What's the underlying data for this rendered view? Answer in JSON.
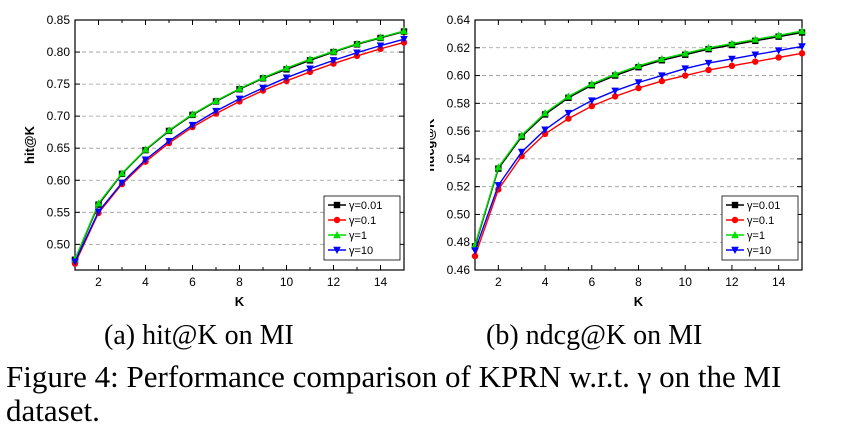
{
  "chart_data": [
    {
      "type": "line",
      "xlabel": "K",
      "ylabel": "hit@K",
      "xlim": [
        1,
        15
      ],
      "ylim": [
        0.46,
        0.85
      ],
      "xticks": [
        2,
        4,
        6,
        8,
        10,
        12,
        14
      ],
      "yticks": [
        0.5,
        0.55,
        0.6,
        0.65,
        0.7,
        0.75,
        0.8,
        0.85
      ],
      "ytick_labels": [
        "0.50",
        "0.55",
        "0.60",
        "0.65",
        "0.70",
        "0.75",
        "0.80",
        "0.85"
      ],
      "grid": "horizontal dashed",
      "legend_position": "bottom-right",
      "x": [
        1,
        2,
        3,
        4,
        5,
        6,
        7,
        8,
        9,
        10,
        11,
        12,
        13,
        14,
        15
      ],
      "series": [
        {
          "name": "γ=0.01",
          "color": "#000000",
          "marker": "square",
          "values": [
            0.476,
            0.562,
            0.61,
            0.647,
            0.677,
            0.702,
            0.723,
            0.742,
            0.759,
            0.773,
            0.787,
            0.8,
            0.812,
            0.822,
            0.832
          ]
        },
        {
          "name": "γ=0.1",
          "color": "#ff0000",
          "marker": "circle",
          "values": [
            0.47,
            0.549,
            0.594,
            0.629,
            0.658,
            0.683,
            0.704,
            0.723,
            0.74,
            0.755,
            0.769,
            0.782,
            0.794,
            0.805,
            0.815
          ]
        },
        {
          "name": "γ=1",
          "color": "#00dd00",
          "marker": "triangle-up",
          "values": [
            0.477,
            0.564,
            0.611,
            0.648,
            0.678,
            0.703,
            0.724,
            0.743,
            0.76,
            0.775,
            0.789,
            0.801,
            0.813,
            0.823,
            0.833
          ]
        },
        {
          "name": "γ=10",
          "color": "#0000ff",
          "marker": "triangle-down",
          "values": [
            0.473,
            0.551,
            0.596,
            0.632,
            0.661,
            0.686,
            0.708,
            0.727,
            0.744,
            0.76,
            0.774,
            0.787,
            0.799,
            0.81,
            0.82
          ]
        }
      ]
    },
    {
      "type": "line",
      "xlabel": "K",
      "ylabel": "ndcg@K",
      "xlim": [
        1,
        15
      ],
      "ylim": [
        0.46,
        0.64
      ],
      "xticks": [
        2,
        4,
        6,
        8,
        10,
        12,
        14
      ],
      "yticks": [
        0.46,
        0.48,
        0.5,
        0.52,
        0.54,
        0.56,
        0.58,
        0.6,
        0.62,
        0.64
      ],
      "ytick_labels": [
        "0.46",
        "0.48",
        "0.50",
        "0.52",
        "0.54",
        "0.56",
        "0.58",
        "0.60",
        "0.62",
        "0.64"
      ],
      "grid": "horizontal dashed",
      "legend_position": "bottom-right",
      "x": [
        1,
        2,
        3,
        4,
        5,
        6,
        7,
        8,
        9,
        10,
        11,
        12,
        13,
        14,
        15
      ],
      "series": [
        {
          "name": "γ=0.01",
          "color": "#000000",
          "marker": "square",
          "values": [
            0.477,
            0.533,
            0.556,
            0.572,
            0.584,
            0.593,
            0.6,
            0.606,
            0.611,
            0.615,
            0.619,
            0.622,
            0.625,
            0.628,
            0.631
          ]
        },
        {
          "name": "γ=0.1",
          "color": "#ff0000",
          "marker": "circle",
          "values": [
            0.47,
            0.518,
            0.542,
            0.558,
            0.569,
            0.578,
            0.585,
            0.591,
            0.596,
            0.6,
            0.604,
            0.607,
            0.61,
            0.613,
            0.616
          ]
        },
        {
          "name": "γ=1",
          "color": "#00dd00",
          "marker": "triangle-up",
          "values": [
            0.478,
            0.534,
            0.557,
            0.573,
            0.585,
            0.594,
            0.601,
            0.607,
            0.612,
            0.616,
            0.62,
            0.623,
            0.626,
            0.629,
            0.632
          ]
        },
        {
          "name": "γ=10",
          "color": "#0000ff",
          "marker": "triangle-down",
          "values": [
            0.474,
            0.521,
            0.545,
            0.561,
            0.573,
            0.582,
            0.589,
            0.595,
            0.6,
            0.605,
            0.609,
            0.612,
            0.615,
            0.618,
            0.621
          ]
        }
      ]
    }
  ],
  "captions": {
    "a": "(a) hit@K on MI",
    "b": "(b) ndcg@K on MI",
    "figure": "Figure 4: Performance comparison of KPRN w.r.t. γ on the MI dataset."
  }
}
